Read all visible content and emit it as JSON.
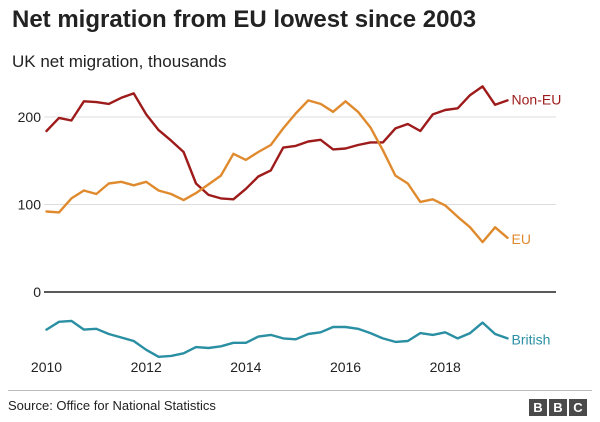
{
  "header": {
    "title": "Net migration from EU lowest since 2003",
    "subtitle": "UK net migration, thousands"
  },
  "footer": {
    "source": "Source: Office for National Statistics",
    "logo_letters": [
      "B",
      "B",
      "C"
    ]
  },
  "colors": {
    "non_eu": "#9e1b1b",
    "eu": "#e08a2e",
    "british": "#2a8fa3",
    "axis": "#222222",
    "grid": "#dddddd"
  },
  "chart_data": {
    "type": "line",
    "title": "Net migration from EU lowest since 2003",
    "subtitle": "UK net migration, thousands",
    "xlabel": "",
    "ylabel": "",
    "xlim": [
      2009.95,
      2019.4
    ],
    "ylim": [
      -80,
      240
    ],
    "x_ticks": [
      2010,
      2012,
      2014,
      2016,
      2018
    ],
    "y_ticks": [
      0,
      100,
      200
    ],
    "grid": true,
    "legend": "inline labels at line ends",
    "x": [
      2010.0,
      2010.25,
      2010.5,
      2010.75,
      2011.0,
      2011.25,
      2011.5,
      2011.75,
      2012.0,
      2012.25,
      2012.5,
      2012.75,
      2013.0,
      2013.25,
      2013.5,
      2013.75,
      2014.0,
      2014.25,
      2014.5,
      2014.75,
      2015.0,
      2015.25,
      2015.5,
      2015.75,
      2016.0,
      2016.25,
      2016.5,
      2016.75,
      2017.0,
      2017.25,
      2017.5,
      2017.75,
      2018.0,
      2018.25,
      2018.5,
      2018.75,
      2019.0,
      2019.25
    ],
    "series": [
      {
        "name": "Non-EU",
        "color": "#9e1b1b",
        "values": [
          184,
          199,
          196,
          218,
          217,
          215,
          222,
          227,
          203,
          185,
          173,
          160,
          124,
          111,
          107,
          106,
          118,
          132,
          139,
          165,
          167,
          172,
          174,
          163,
          164,
          168,
          171,
          171,
          187,
          192,
          184,
          203,
          208,
          210,
          225,
          235,
          214,
          219
        ]
      },
      {
        "name": "EU",
        "color": "#e08a2e",
        "values": [
          92,
          91,
          107,
          116,
          112,
          124,
          126,
          122,
          126,
          116,
          112,
          105,
          113,
          123,
          133,
          158,
          151,
          160,
          168,
          187,
          204,
          219,
          215,
          206,
          218,
          206,
          188,
          162,
          133,
          124,
          103,
          106,
          99,
          86,
          74,
          57,
          74,
          62
        ]
      },
      {
        "name": "British",
        "color": "#2a8fa3",
        "values": [
          -43,
          -34,
          -33,
          -43,
          -42,
          -48,
          -52,
          -56,
          -66,
          -74,
          -73,
          -70,
          -63,
          -64,
          -62,
          -58,
          -58,
          -51,
          -49,
          -53,
          -54,
          -48,
          -46,
          -40,
          -40,
          -42,
          -47,
          -53,
          -57,
          -56,
          -47,
          -49,
          -46,
          -53,
          -47,
          -35,
          -48,
          -53
        ]
      }
    ],
    "end_labels": [
      "Non-EU",
      "EU",
      "British"
    ]
  }
}
